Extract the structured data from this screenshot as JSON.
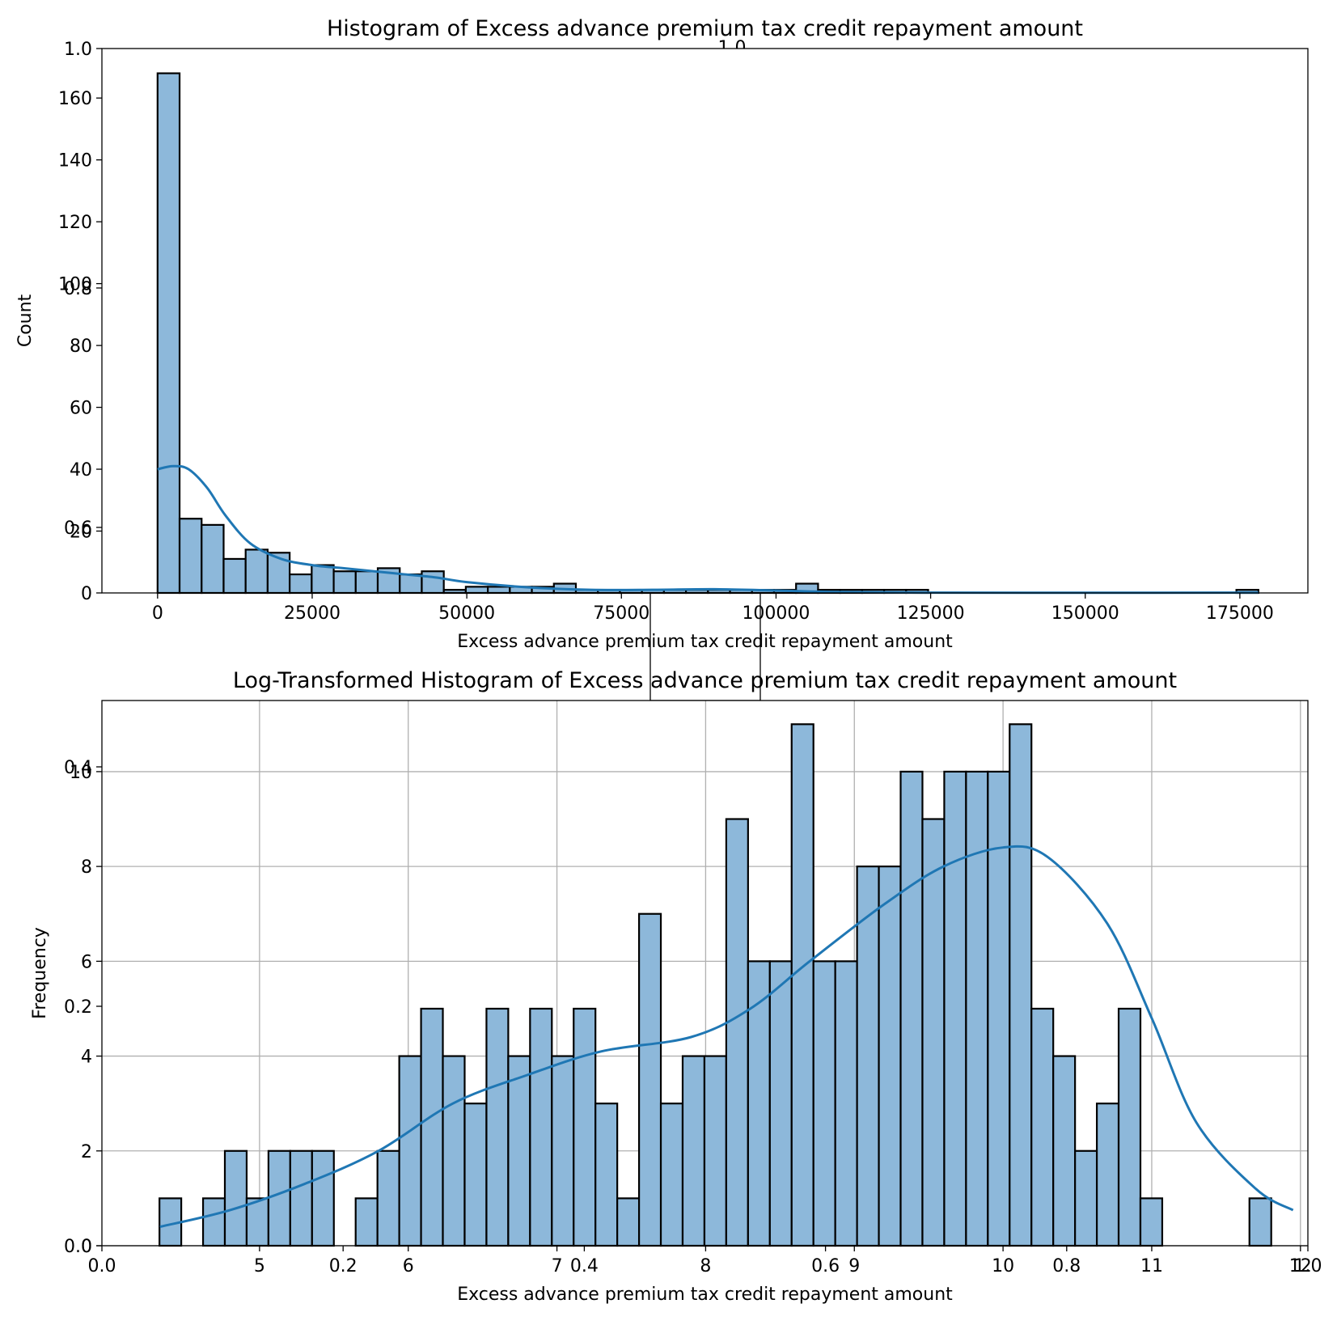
{
  "colors": {
    "bar_fill": "#8db8da",
    "bar_edge": "#000000",
    "kde": "#1f77b4",
    "grid": "#b0b0b0"
  },
  "chart_data": [
    {
      "type": "bar",
      "title": "Histogram of Excess advance premium tax credit repayment amount",
      "xlabel": "Excess advance premium tax credit repayment amount",
      "ylabel": "Count",
      "grid": false,
      "xlim": [
        -9000,
        186000
      ],
      "ylim": [
        0,
        176
      ],
      "xticks": [
        0,
        25000,
        50000,
        75000,
        100000,
        125000,
        150000,
        175000
      ],
      "yticks": [
        0,
        20,
        40,
        60,
        80,
        100,
        120,
        140,
        160
      ],
      "bin_start": 0,
      "bin_width": 3560,
      "bin_counts": [
        168,
        24,
        22,
        11,
        14,
        13,
        6,
        9,
        7,
        7,
        8,
        6,
        7,
        1,
        2,
        2,
        2,
        2,
        3,
        1,
        1,
        1,
        1,
        1,
        1,
        1,
        1,
        1,
        1,
        3,
        1,
        1,
        1,
        1,
        1,
        0,
        0,
        0,
        0,
        0,
        0,
        0,
        0,
        0,
        0,
        0,
        0,
        0,
        0,
        1
      ],
      "kde": {
        "x": [
          0,
          2500,
          5000,
          8000,
          11000,
          15000,
          20000,
          25000,
          30000,
          35000,
          40000,
          45000,
          50000,
          60000,
          70000,
          80000,
          90000,
          100000,
          110000,
          125000,
          150000,
          178000
        ],
        "y": [
          40,
          41,
          40,
          34,
          25,
          16,
          11,
          9,
          8,
          7,
          6,
          5,
          3.5,
          1.8,
          1,
          1,
          1.2,
          0.8,
          0.3,
          0.1,
          0.05,
          0.1
        ]
      }
    },
    {
      "type": "bar",
      "title": "Log-Transformed Histogram of Excess advance premium tax credit repayment amount",
      "xlabel": "Excess advance premium tax credit repayment amount",
      "ylabel": "Frequency",
      "grid": true,
      "xlim": [
        3.94,
        12.05
      ],
      "ylim": [
        0,
        11.5
      ],
      "xticks": [
        5,
        6,
        7,
        8,
        9,
        10,
        11,
        12
      ],
      "yticks": [
        0,
        2,
        4,
        6,
        8,
        10
      ],
      "bin_start": 4.327,
      "bin_width": 0.1466,
      "bin_counts": [
        1,
        0,
        1,
        2,
        1,
        2,
        2,
        2,
        0,
        1,
        2,
        4,
        5,
        4,
        3,
        5,
        4,
        5,
        4,
        5,
        3,
        1,
        7,
        3,
        4,
        4,
        9,
        6,
        6,
        11,
        6,
        6,
        8,
        8,
        10,
        9,
        10,
        10,
        10,
        11,
        5,
        4,
        2,
        3,
        5,
        1,
        0,
        0,
        0,
        0,
        1
      ],
      "kde": {
        "x": [
          4.33,
          4.8,
          5.3,
          5.8,
          6.3,
          6.8,
          7.3,
          7.9,
          8.3,
          8.7,
          9.2,
          9.6,
          10.0,
          10.3,
          10.7,
          11.0,
          11.3,
          11.7,
          11.95
        ],
        "y": [
          0.4,
          0.75,
          1.3,
          2.0,
          3.0,
          3.6,
          4.1,
          4.4,
          5.0,
          6.0,
          7.2,
          8.0,
          8.4,
          8.2,
          6.8,
          4.8,
          2.6,
          1.2,
          0.75
        ]
      }
    }
  ],
  "ghost_axes": {
    "x_ticks": [
      "0.0",
      "0.2",
      "0.4",
      "0.6",
      "0.8",
      "1.0"
    ],
    "y_ticks": [
      "0.0",
      "0.2",
      "0.4",
      "0.6",
      "0.8",
      "1.0"
    ],
    "x_values": [
      0,
      0.2,
      0.4,
      0.6,
      0.8,
      1.0
    ],
    "y_values": [
      0,
      0.2,
      0.4,
      0.6,
      0.8,
      1.0
    ]
  }
}
